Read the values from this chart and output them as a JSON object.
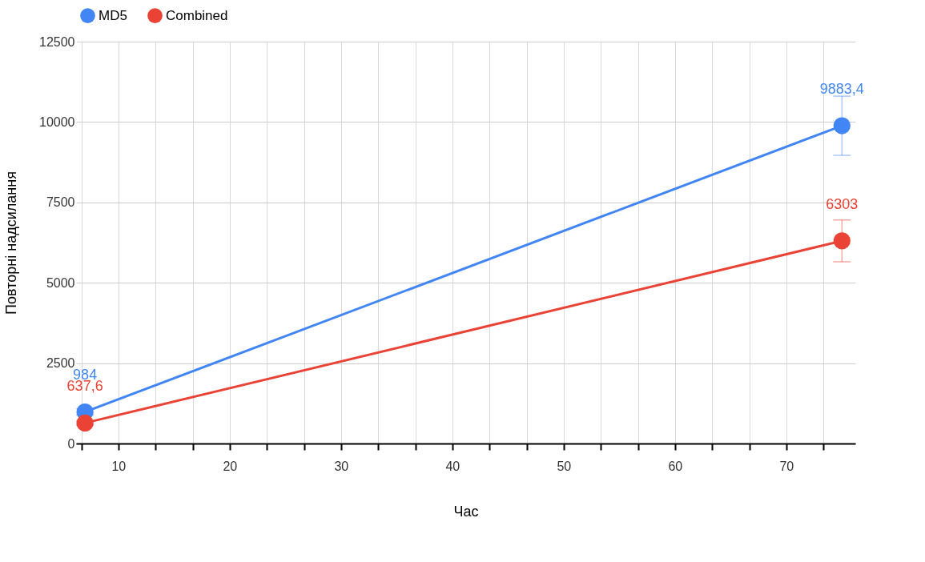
{
  "chart_data": {
    "type": "line",
    "xlabel": "Час",
    "ylabel": "Повторні надсилання",
    "x": [
      7,
      75
    ],
    "series": [
      {
        "name": "MD5",
        "color": "#4285f4",
        "values": [
          984,
          9883.4
        ],
        "errors": [
          98,
          920
        ],
        "value_labels": [
          "984",
          "9883,4"
        ]
      },
      {
        "name": "Combined",
        "color": "#ea4335",
        "values": [
          637.6,
          6303
        ],
        "errors": [
          64,
          650
        ],
        "value_labels": [
          "637,6",
          "6303"
        ]
      }
    ],
    "xlim": [
      6.2,
      76.2
    ],
    "xticks": [
      {
        "value": 6.67,
        "label": null
      },
      10,
      {
        "value": 13.33,
        "label": null
      },
      {
        "value": 16.67,
        "label": null
      },
      20,
      {
        "value": 23.33,
        "label": null
      },
      {
        "value": 26.67,
        "label": null
      },
      30,
      {
        "value": 33.33,
        "label": null
      },
      {
        "value": 36.67,
        "label": null
      },
      40,
      {
        "value": 43.33,
        "label": null
      },
      {
        "value": 46.67,
        "label": null
      },
      50,
      {
        "value": 53.33,
        "label": null
      },
      {
        "value": 56.67,
        "label": null
      },
      60,
      {
        "value": 63.33,
        "label": null
      },
      {
        "value": 66.67,
        "label": null
      },
      70,
      {
        "value": 73.33,
        "label": null
      }
    ],
    "ylim": [
      0,
      12500
    ],
    "yticks": [
      0,
      2500,
      5000,
      7500,
      10000,
      12500
    ],
    "grid": true,
    "legend": "top",
    "marker": "circle",
    "line_style": "solid"
  }
}
